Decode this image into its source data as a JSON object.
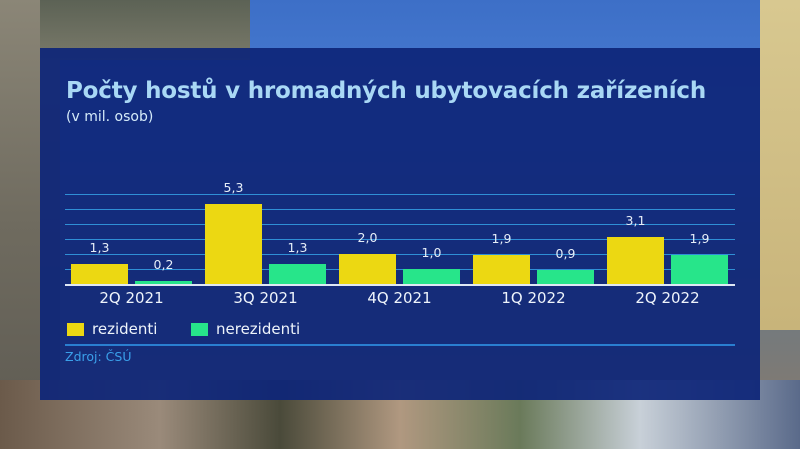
{
  "title": "Počty hostů v hromadných ubytovacích zařízeních",
  "subtitle": "(v mil. osob)",
  "source": "Zdroj: ČSÚ",
  "legend": [
    {
      "label": "rezidenti",
      "color": "#ecd812"
    },
    {
      "label": "nerezidenti",
      "color": "#27e58a"
    }
  ],
  "chart_data": {
    "type": "bar",
    "title": "Počty hostů v hromadných ubytovacích zařízeních",
    "subtitle": "(v mil. osob)",
    "categories": [
      "2Q 2021",
      "3Q 2021",
      "4Q 2021",
      "1Q 2022",
      "2Q 2022"
    ],
    "series": [
      {
        "name": "rezidenti",
        "color": "#ecd812",
        "values": [
          1.3,
          5.3,
          2.0,
          1.9,
          3.1
        ]
      },
      {
        "name": "nerezidenti",
        "color": "#27e58a",
        "values": [
          0.2,
          1.3,
          1.0,
          0.9,
          1.9
        ]
      }
    ],
    "value_labels": {
      "rezidenti": [
        "1,3",
        "5,3",
        "2,0",
        "1,9",
        "3,1"
      ],
      "nerezidenti": [
        "0,2",
        "1,3",
        "1,0",
        "0,9",
        "1,9"
      ]
    },
    "xlabel": "",
    "ylabel": "mil. osob",
    "ylim": [
      0,
      6
    ],
    "grid": true,
    "legend_position": "bottom-left",
    "source": "Zdroj: ČSÚ"
  }
}
